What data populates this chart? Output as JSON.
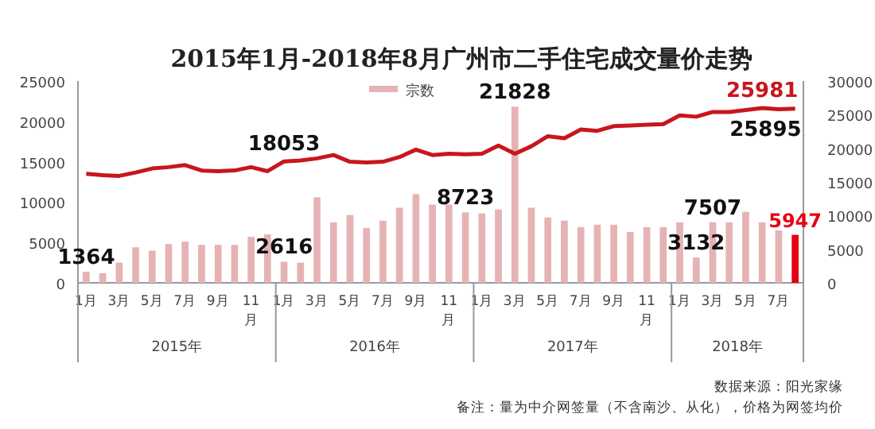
{
  "chart_data": {
    "type": "bar",
    "title": "2015年1月-2018年8月广州市二手住宅成交量价走势",
    "categories": [
      "1月",
      null,
      "3月",
      null,
      "5月",
      null,
      "7月",
      null,
      "9月",
      null,
      "11月",
      null,
      "1月",
      null,
      "3月",
      null,
      "5月",
      null,
      "7月",
      null,
      "9月",
      null,
      "11月",
      null,
      "1月",
      null,
      "3月",
      null,
      "5月",
      null,
      "7月",
      null,
      "9月",
      null,
      "11月",
      null,
      "1月",
      null,
      "3月",
      null,
      "5月",
      null,
      "7月",
      null
    ],
    "series": [
      {
        "name": "宗数",
        "type": "bar",
        "color": "#e6b3b5",
        "colors": [
          "#e6b3b5",
          "#e6b3b5",
          "#e6b3b5",
          "#e6b3b5",
          "#e6b3b5",
          "#e6b3b5",
          "#e6b3b5",
          "#e6b3b5",
          "#e6b3b5",
          "#e6b3b5",
          "#e6b3b5",
          "#e6b3b5",
          "#e6b3b5",
          "#e6b3b5",
          "#e6b3b5",
          "#e6b3b5",
          "#e6b3b5",
          "#e6b3b5",
          "#e6b3b5",
          "#e6b3b5",
          "#e6b3b5",
          "#e6b3b5",
          "#e6b3b5",
          "#e6b3b5",
          "#e6b3b5",
          "#e6b3b5",
          "#e6b3b5",
          "#e6b3b5",
          "#e6b3b5",
          "#e6b3b5",
          "#e6b3b5",
          "#e6b3b5",
          "#e6b3b5",
          "#e6b3b5",
          "#e6b3b5",
          "#e6b3b5",
          "#e6b3b5",
          "#e6b3b5",
          "#e6b3b5",
          "#e6b3b5",
          "#e6b3b5",
          "#e6b3b5",
          "#e6b3b5",
          "#e60012"
        ],
        "values": [
          1364,
          1200,
          2500,
          4400,
          4000,
          4800,
          5100,
          4700,
          4700,
          4700,
          5700,
          6000,
          2616,
          2500,
          10600,
          7500,
          8400,
          6800,
          7700,
          9300,
          11000,
          9700,
          9700,
          8723,
          8600,
          9100,
          21828,
          9300,
          8100,
          7700,
          6900,
          7200,
          7200,
          6300,
          6900,
          6900,
          7500,
          3132,
          7507,
          7500,
          8800,
          7500,
          6500,
          5947
        ],
        "value_labels": [
          "1364",
          null,
          null,
          null,
          null,
          null,
          null,
          null,
          null,
          null,
          null,
          null,
          "2616",
          null,
          null,
          null,
          null,
          null,
          null,
          null,
          null,
          null,
          null,
          "8723",
          null,
          null,
          "21828",
          null,
          null,
          null,
          null,
          null,
          null,
          null,
          null,
          null,
          null,
          "3132",
          "7507",
          null,
          null,
          null,
          null,
          "5947"
        ]
      },
      {
        "type": "line",
        "axis": "y2",
        "color": "#c8161d",
        "values": [
          16200,
          16000,
          15900,
          16400,
          17000,
          17200,
          17500,
          16700,
          16600,
          16700,
          17200,
          16600,
          18053,
          18200,
          18500,
          19000,
          18000,
          17900,
          18000,
          18700,
          19800,
          19000,
          19200,
          19100,
          19200,
          20400,
          19200,
          20300,
          21800,
          21500,
          22800,
          22600,
          23300,
          23400,
          23500,
          23600,
          24900,
          24700,
          25400,
          25400,
          25700,
          25981,
          25800,
          25895
        ],
        "value_labels": [
          null,
          null,
          null,
          null,
          null,
          null,
          null,
          null,
          null,
          null,
          null,
          null,
          "18053",
          null,
          null,
          null,
          null,
          null,
          null,
          null,
          null,
          null,
          null,
          null,
          null,
          null,
          null,
          null,
          null,
          null,
          null,
          null,
          null,
          null,
          null,
          null,
          null,
          null,
          null,
          null,
          null,
          "25981",
          null,
          "25895"
        ]
      }
    ],
    "ylim": [
      0,
      25000
    ],
    "yticks": [
      0,
      5000,
      10000,
      15000,
      20000,
      25000
    ],
    "y2lim": [
      0,
      30000
    ],
    "y2ticks": [
      0,
      5000,
      10000,
      15000,
      20000,
      25000,
      30000
    ],
    "legend": "top",
    "marker": "none",
    "line_style": "solid",
    "annotations": [
      "2015年",
      "2016年",
      "2017年",
      "2018年",
      "数据来源：阳光家缘",
      "备注：量为中介网签量（不含南沙、从化），价格为网签均价"
    ]
  }
}
